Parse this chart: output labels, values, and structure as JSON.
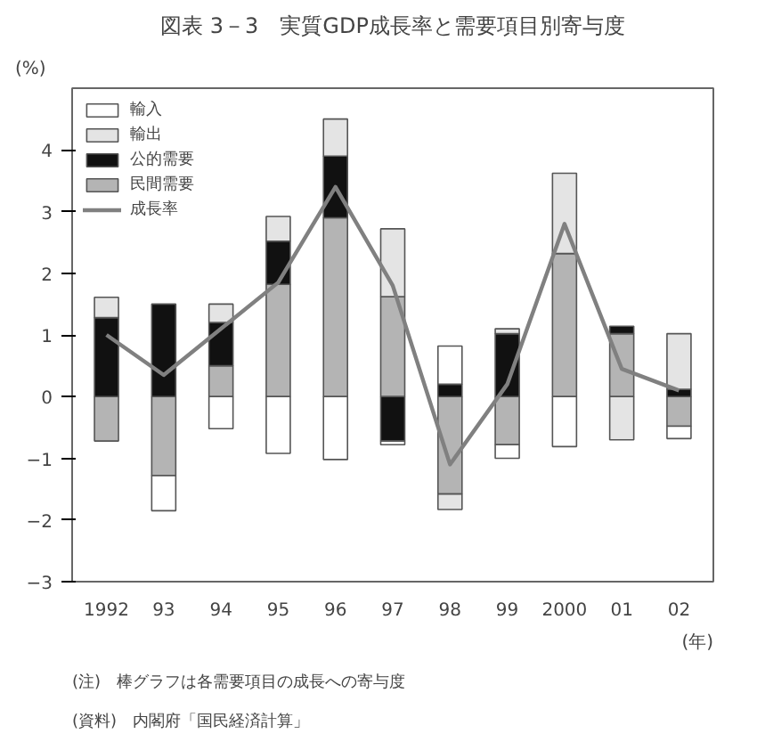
{
  "chart_data": {
    "type": "bar",
    "stacked": true,
    "title": "図表 3－3　実質GDP成長率と需要項目別寄与度",
    "ylabel": "(%)",
    "xlabel": "(年)",
    "annotations": [
      "(注)　棒グラフは各需要項目の成長への寄与度",
      "(資料)　内閣府「国民経済計算」"
    ],
    "categories": [
      "1992",
      "93",
      "94",
      "95",
      "96",
      "97",
      "98",
      "99",
      "2000",
      "01",
      "02"
    ],
    "series": [
      {
        "name": "民間需要",
        "color": "#b4b4b4",
        "values": [
          -0.72,
          -1.28,
          0.5,
          1.82,
          2.9,
          1.62,
          -1.58,
          -0.78,
          2.32,
          1.02,
          -0.48
        ]
      },
      {
        "name": "公的需要",
        "color": "#111111",
        "values": [
          1.28,
          1.5,
          0.7,
          0.7,
          1.0,
          -0.72,
          0.2,
          1.02,
          0,
          0.12,
          0.12
        ]
      },
      {
        "name": "輸出",
        "color": "#e4e4e4",
        "values": [
          0.33,
          0,
          0.3,
          0.4,
          0.6,
          1.1,
          -0.25,
          0.08,
          1.3,
          -0.7,
          0.9
        ]
      },
      {
        "name": "輸入",
        "color": "#ffffff",
        "values": [
          0,
          -0.57,
          -0.52,
          -0.92,
          -1.02,
          -0.06,
          0.62,
          -0.22,
          -0.81,
          0,
          -0.2
        ]
      },
      {
        "name": "成長率",
        "type": "line",
        "color": "#808080",
        "values": [
          1.0,
          0.35,
          1.1,
          1.85,
          3.4,
          1.8,
          -1.1,
          0.2,
          2.8,
          0.45,
          0.1
        ]
      }
    ],
    "ylim": [
      -3,
      5
    ],
    "yticks": [
      {
        "value": -3,
        "label": "−3"
      },
      {
        "value": -2,
        "label": "−2"
      },
      {
        "value": -1,
        "label": "−1"
      },
      0,
      1,
      2,
      3,
      4
    ],
    "grid": false,
    "legend": "top left",
    "marker": "none",
    "line_style": "solid"
  }
}
